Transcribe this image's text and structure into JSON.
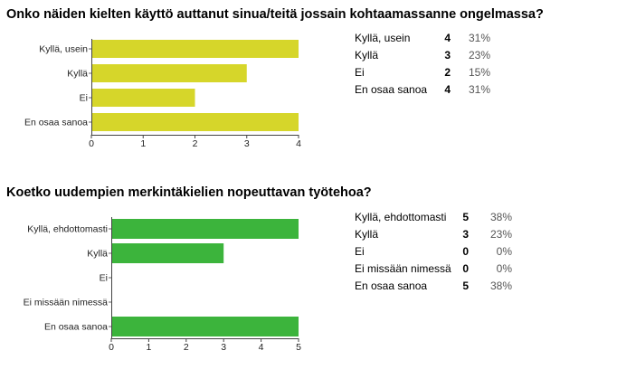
{
  "questions": [
    {
      "title": "Onko näiden kielten käyttö auttanut sinua/teitä jossain kohtaamassanne ongelmassa?",
      "rows": [
        {
          "label": "Kyllä, usein",
          "count": "4",
          "percent": "31%"
        },
        {
          "label": "Kyllä",
          "count": "3",
          "percent": "23%"
        },
        {
          "label": "Ei",
          "count": "2",
          "percent": "15%"
        },
        {
          "label": "En osaa sanoa",
          "count": "4",
          "percent": "31%"
        }
      ]
    },
    {
      "title": "Koetko uudempien merkintäkielien nopeuttavan työtehoa?",
      "rows": [
        {
          "label": "Kyllä, ehdottomasti",
          "count": "5",
          "percent": "38%"
        },
        {
          "label": "Kyllä",
          "count": "3",
          "percent": "23%"
        },
        {
          "label": "Ei",
          "count": "0",
          "percent": "0%"
        },
        {
          "label": "Ei missään nimessä",
          "count": "0",
          "percent": "0%"
        },
        {
          "label": "En osaa sanoa",
          "count": "5",
          "percent": "38%"
        }
      ]
    }
  ],
  "chart_data": [
    {
      "type": "bar",
      "orientation": "horizontal",
      "categories": [
        "Kyllä, usein",
        "Kyllä",
        "Ei",
        "En osaa sanoa"
      ],
      "values": [
        4,
        3,
        2,
        4
      ],
      "xlim": [
        0,
        4
      ],
      "xticks": [
        "0",
        "1",
        "2",
        "3",
        "4"
      ],
      "color": "#d6d62a",
      "grid": false
    },
    {
      "type": "bar",
      "orientation": "horizontal",
      "categories": [
        "Kyllä, ehdottomasti",
        "Kyllä",
        "Ei",
        "Ei missään nimessä",
        "En osaa sanoa"
      ],
      "values": [
        5,
        3,
        0,
        0,
        5
      ],
      "xlim": [
        0,
        5
      ],
      "xticks": [
        "0",
        "1",
        "2",
        "3",
        "4",
        "5"
      ],
      "color": "#3cb43c",
      "grid": false
    }
  ]
}
